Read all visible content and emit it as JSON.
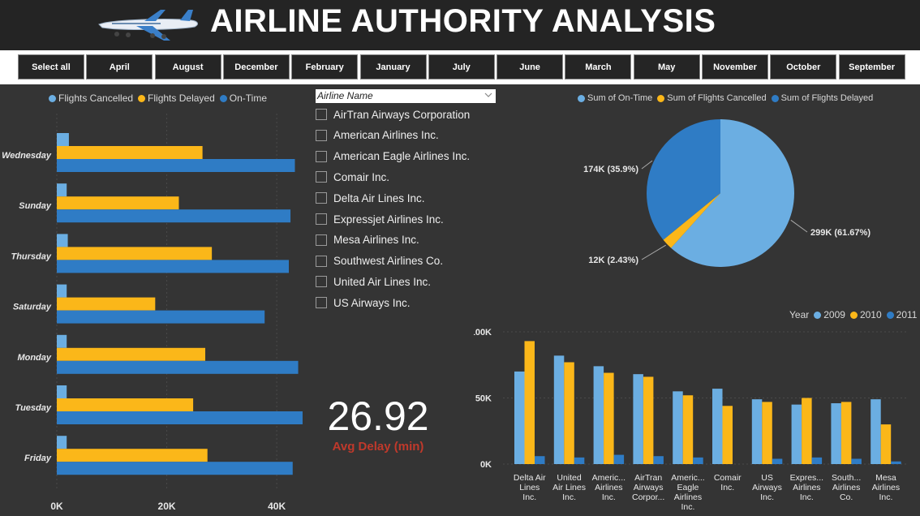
{
  "header": {
    "title": "AIRLINE AUTHORITY ANALYSIS",
    "logo_icon": "airplane-icon"
  },
  "month_slicer": {
    "buttons": [
      "Select all",
      "April",
      "August",
      "December",
      "February",
      "January",
      "July",
      "June",
      "March",
      "May",
      "November",
      "October",
      "September"
    ]
  },
  "colors": {
    "cancelled": "#6baee2",
    "delayed": "#fbb719",
    "ontime": "#2f7cc5",
    "y2009": "#6baee2",
    "y2010": "#fbb719",
    "y2011": "#2f7cc5",
    "kpi_label": "#c0392b"
  },
  "weekday_chart": {
    "legend": [
      "Flights Cancelled",
      "Flights Delayed",
      "On-Time"
    ],
    "chart_data": {
      "type": "bar",
      "orientation": "horizontal",
      "categories": [
        "Wednesday",
        "Sunday",
        "Thursday",
        "Saturday",
        "Monday",
        "Tuesday",
        "Friday"
      ],
      "series": [
        {
          "name": "Flights Cancelled",
          "values": [
            2200,
            1800,
            2000,
            1800,
            1800,
            1800,
            1800
          ]
        },
        {
          "name": "Flights Delayed",
          "values": [
            26500,
            22200,
            28200,
            17900,
            27000,
            24800,
            27400
          ]
        },
        {
          "name": "On-Time",
          "values": [
            43300,
            42500,
            42200,
            37800,
            43900,
            44700,
            42900
          ]
        }
      ],
      "xlim": [
        0,
        45000
      ],
      "ticks": [
        "0K",
        "20K",
        "40K"
      ],
      "tick_values": [
        0,
        20000,
        40000
      ]
    }
  },
  "airline_filter": {
    "header": "Airline Name",
    "items": [
      "AirTran Airways Corporation",
      "American Airlines Inc.",
      "American Eagle Airlines Inc.",
      "Comair Inc.",
      "Delta Air Lines Inc.",
      "Expressjet Airlines Inc.",
      "Mesa Airlines Inc.",
      "Southwest Airlines Co.",
      "United Air Lines Inc.",
      "US Airways Inc."
    ]
  },
  "kpi": {
    "value": "26.92",
    "label": "Avg Delay (min)"
  },
  "pie_chart": {
    "legend": [
      "Sum of On-Time",
      "Sum of Flights Cancelled",
      "Sum of Flights Delayed"
    ],
    "chart_data": {
      "type": "pie",
      "slices": [
        {
          "name": "Sum of On-Time",
          "value": 61.67,
          "label": "299K (61.67%)"
        },
        {
          "name": "Sum of Flights Cancelled",
          "value": 2.43,
          "label": "12K (2.43%)"
        },
        {
          "name": "Sum of Flights Delayed",
          "value": 35.9,
          "label": "174K (35.9%)"
        }
      ]
    }
  },
  "year_chart": {
    "legend_title": "Year",
    "legend": [
      "2009",
      "2010",
      "2011"
    ],
    "chart_data": {
      "type": "bar",
      "categories": [
        [
          "Delta Air",
          "Lines",
          "Inc."
        ],
        [
          "United",
          "Air Lines",
          "Inc."
        ],
        [
          "Americ...",
          "Airlines",
          "Inc."
        ],
        [
          "AirTran",
          "Airways",
          "Corpor..."
        ],
        [
          "Americ...",
          "Eagle",
          "Airlines",
          "Inc."
        ],
        [
          "Comair",
          "Inc."
        ],
        [
          "US",
          "Airways",
          "Inc."
        ],
        [
          "Expres...",
          "Airlines",
          "Inc."
        ],
        [
          "South...",
          "Airlines",
          "Co."
        ],
        [
          "Mesa",
          "Airlines",
          "Inc."
        ]
      ],
      "series": [
        {
          "name": "2009",
          "values": [
            70000,
            82000,
            74000,
            68000,
            55000,
            57000,
            49000,
            45000,
            46000,
            49000
          ]
        },
        {
          "name": "2010",
          "values": [
            93000,
            77000,
            69000,
            66000,
            52000,
            44000,
            47000,
            50000,
            47000,
            30000
          ]
        },
        {
          "name": "2011",
          "values": [
            6000,
            5000,
            7000,
            6000,
            5000,
            0,
            4000,
            5000,
            4000,
            2000
          ]
        }
      ],
      "ylim": [
        0,
        100000
      ],
      "ticks": [
        "0K",
        "50K",
        "100K"
      ],
      "tick_values": [
        0,
        50000,
        100000
      ]
    }
  }
}
